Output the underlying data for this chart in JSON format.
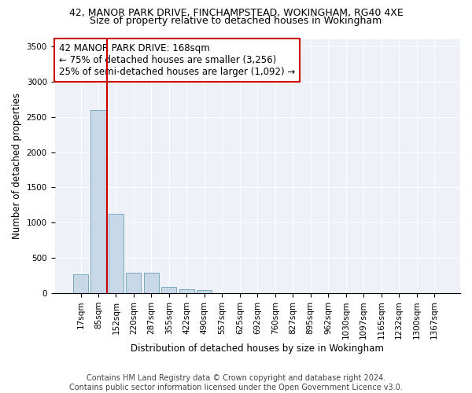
{
  "title_line1": "42, MANOR PARK DRIVE, FINCHAMPSTEAD, WOKINGHAM, RG40 4XE",
  "title_line2": "Size of property relative to detached houses in Wokingham",
  "xlabel": "Distribution of detached houses by size in Wokingham",
  "ylabel": "Number of detached properties",
  "bar_color": "#c8d8e8",
  "bar_edge_color": "#7aaabb",
  "annotation_box_color": "#cc0000",
  "categories": [
    "17sqm",
    "85sqm",
    "152sqm",
    "220sqm",
    "287sqm",
    "355sqm",
    "422sqm",
    "490sqm",
    "557sqm",
    "625sqm",
    "692sqm",
    "760sqm",
    "827sqm",
    "895sqm",
    "962sqm",
    "1030sqm",
    "1097sqm",
    "1165sqm",
    "1232sqm",
    "1300sqm",
    "1367sqm"
  ],
  "values": [
    270,
    2600,
    1120,
    290,
    290,
    90,
    60,
    45,
    0,
    0,
    0,
    0,
    0,
    0,
    0,
    0,
    0,
    0,
    0,
    0,
    0
  ],
  "annotation_line1": "42 MANOR PARK DRIVE: 168sqm",
  "annotation_line2": "← 75% of detached houses are smaller (3,256)",
  "annotation_line3": "25% of semi-detached houses are larger (1,092) →",
  "vline_color": "#cc0000",
  "vline_x": 1.5,
  "ylim": [
    0,
    3600
  ],
  "yticks": [
    0,
    500,
    1000,
    1500,
    2000,
    2500,
    3000,
    3500
  ],
  "footnote": "Contains HM Land Registry data © Crown copyright and database right 2024.\nContains public sector information licensed under the Open Government Licence v3.0.",
  "title1_fontsize": 9,
  "title2_fontsize": 9,
  "xlabel_fontsize": 8.5,
  "ylabel_fontsize": 8.5,
  "tick_fontsize": 7.5,
  "annotation_fontsize": 8.5,
  "footnote_fontsize": 7
}
